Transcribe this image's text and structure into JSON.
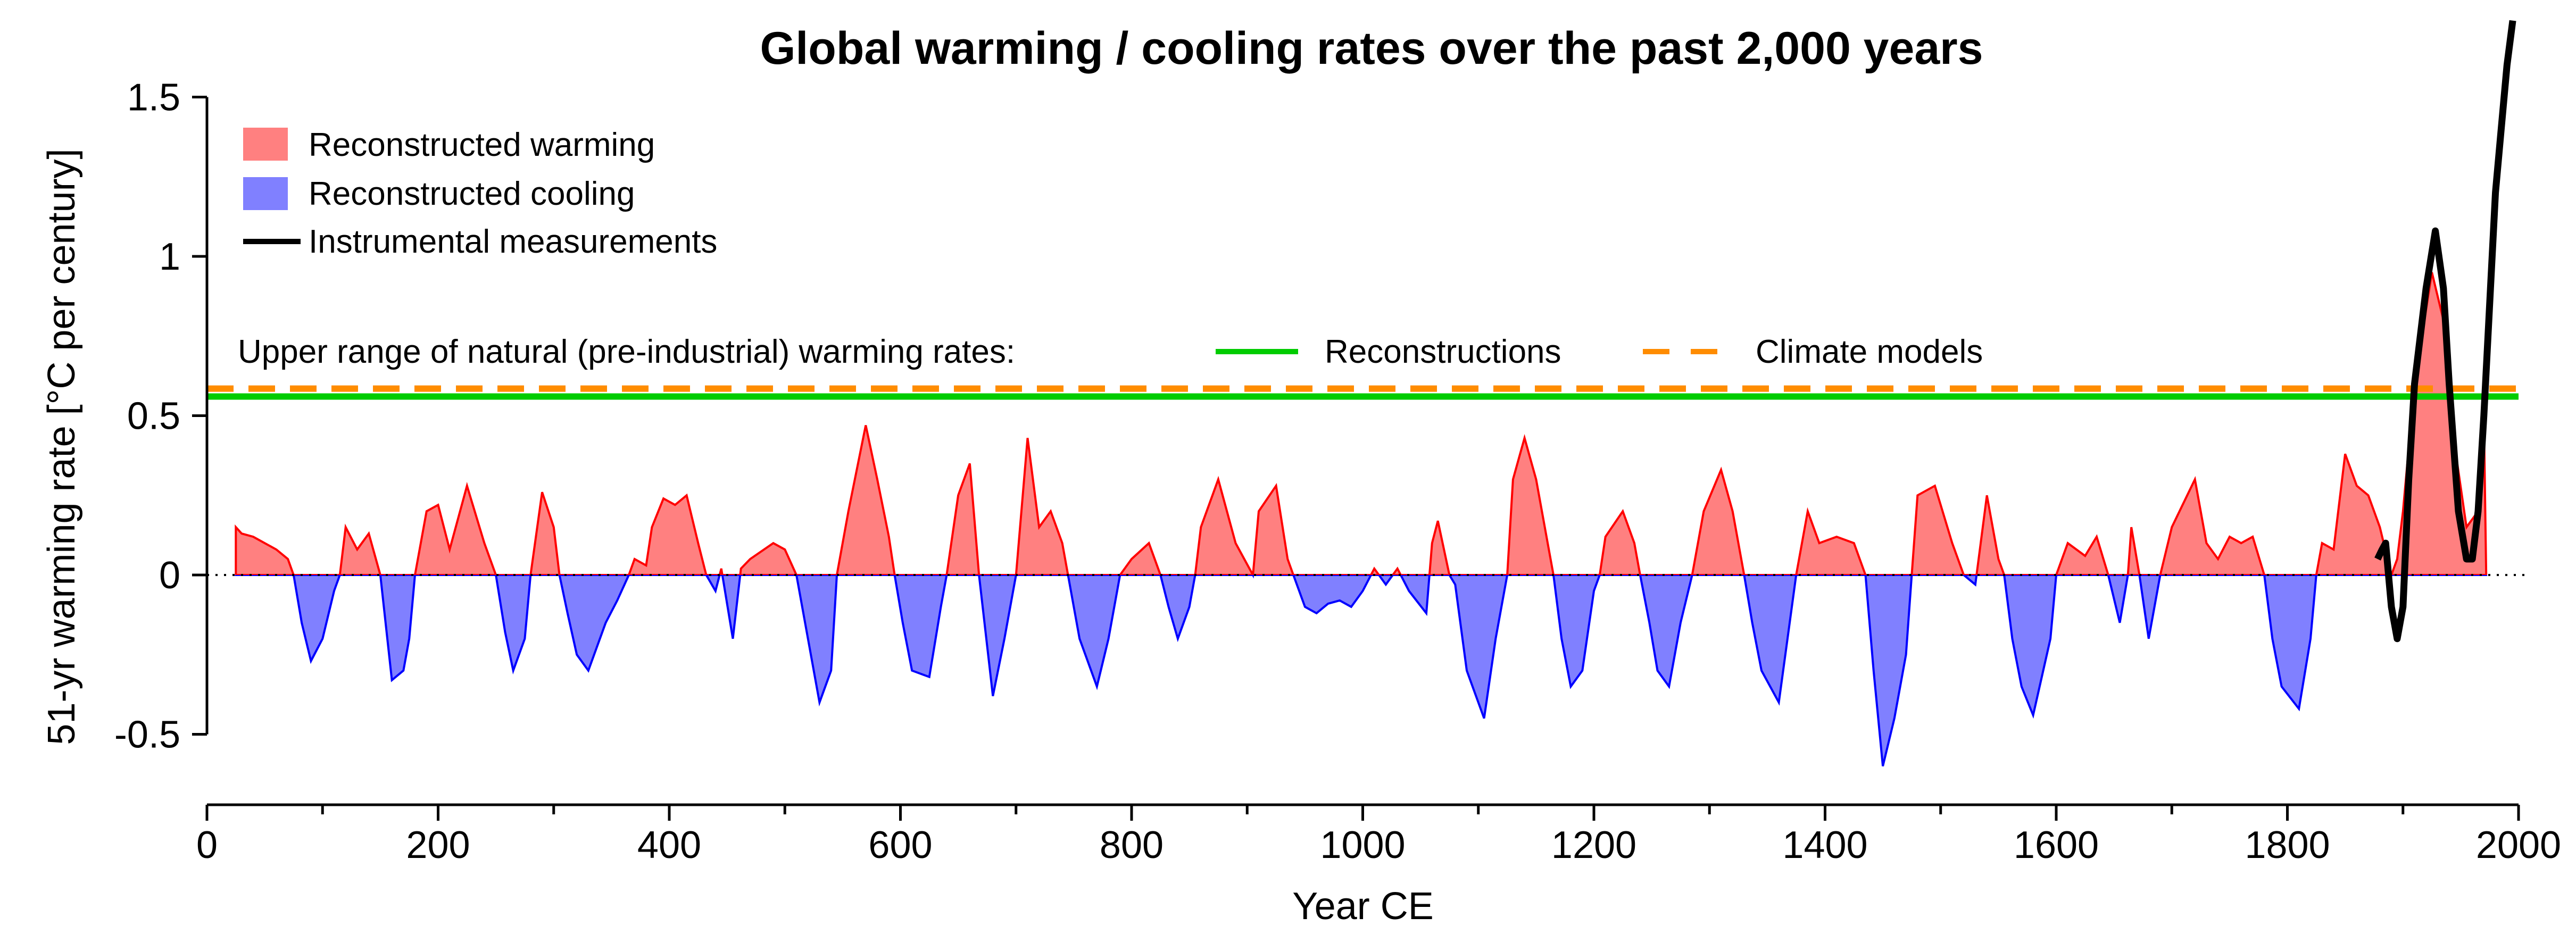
{
  "chart_data": {
    "type": "area",
    "title": "Global warming / cooling rates over the past 2,000 years",
    "xlabel": "Year CE",
    "ylabel": "51-yr warming rate [°C per century]",
    "xlim": [
      0,
      2000
    ],
    "ylim": [
      -0.6,
      1.75
    ],
    "xticks": [
      0,
      200,
      400,
      600,
      800,
      1000,
      1200,
      1400,
      1600,
      1800,
      2000
    ],
    "xtick_labels": [
      "0",
      "200",
      "400",
      "600",
      "800",
      "1000",
      "1200",
      "1400",
      "1600",
      "1800",
      "2000"
    ],
    "xminor_step": 100,
    "yticks": [
      -0.5,
      0,
      0.5,
      1,
      1.5
    ],
    "ytick_labels": [
      "-0.5",
      "0",
      "0.5",
      "1",
      "1.5"
    ],
    "grid": false,
    "legend_placement": "top-left",
    "legend": [
      {
        "label": "Reconstructed warming",
        "type": "fill",
        "color": "#FF8080"
      },
      {
        "label": "Reconstructed cooling",
        "type": "fill",
        "color": "#8080FF"
      },
      {
        "label": "Instrumental measurements",
        "type": "line",
        "color": "#000000"
      }
    ],
    "reference_lines": {
      "label": "Upper range of natural (pre-industrial) warming rates:",
      "items": [
        {
          "label": "Reconstructions",
          "value": 0.56,
          "color": "#00CC00",
          "style": "solid"
        },
        {
          "label": "Climate models",
          "value": 0.585,
          "color": "#FF8C00",
          "style": "dashed"
        }
      ]
    },
    "colors": {
      "warming_line": "#FF0000",
      "cooling_line": "#0000FF",
      "warming_fill": "#FF8080",
      "cooling_fill": "#8080FF"
    },
    "series": [
      {
        "name": "Reconstructed warming / cooling",
        "x": [
          25,
          30,
          40,
          50,
          60,
          70,
          75,
          82,
          90,
          100,
          110,
          115,
          120,
          130,
          140,
          150,
          160,
          170,
          175,
          180,
          190,
          200,
          210,
          225,
          240,
          250,
          258,
          265,
          275,
          280,
          290,
          300,
          305,
          312,
          320,
          330,
          345,
          355,
          365,
          370,
          380,
          385,
          395,
          405,
          415,
          425,
          432,
          440,
          445,
          455,
          462,
          470,
          490,
          500,
          510,
          520,
          530,
          540,
          545,
          555,
          570,
          580,
          590,
          595,
          602,
          610,
          625,
          635,
          640,
          650,
          660,
          668,
          680,
          690,
          700,
          710,
          720,
          730,
          740,
          745,
          755,
          770,
          780,
          790,
          800,
          815,
          825,
          832,
          840,
          850,
          855,
          860,
          875,
          890,
          905,
          910,
          925,
          935,
          940,
          950,
          960,
          970,
          980,
          990,
          1000,
          1010,
          1020,
          1030,
          1040,
          1055,
          1060,
          1065,
          1075,
          1080,
          1090,
          1105,
          1115,
          1125,
          1130,
          1140,
          1150,
          1160,
          1165,
          1172,
          1180,
          1190,
          1200,
          1205,
          1210,
          1225,
          1235,
          1240,
          1248,
          1255,
          1265,
          1275,
          1285,
          1295,
          1310,
          1320,
          1330,
          1337,
          1345,
          1360,
          1375,
          1385,
          1395,
          1410,
          1425,
          1435,
          1442,
          1450,
          1460,
          1470,
          1475,
          1480,
          1495,
          1510,
          1520,
          1530,
          1540,
          1550,
          1555,
          1562,
          1570,
          1580,
          1595,
          1600,
          1610,
          1625,
          1635,
          1645,
          1655,
          1662,
          1665,
          1672,
          1680,
          1690,
          1700,
          1720,
          1730,
          1740,
          1750,
          1760,
          1770,
          1780,
          1787,
          1795,
          1810,
          1820,
          1825,
          1830,
          1840,
          1850,
          1860,
          1870,
          1880,
          1890,
          1895,
          1900,
          1910,
          1925,
          1935,
          1945,
          1955,
          1965,
          1970,
          1972
        ],
        "y": [
          0.15,
          0.13,
          0.12,
          0.1,
          0.08,
          0.05,
          0,
          -0.15,
          -0.27,
          -0.2,
          -0.05,
          0,
          0.15,
          0.08,
          0.13,
          0,
          -0.33,
          -0.3,
          -0.2,
          0,
          0.2,
          0.22,
          0.08,
          0.28,
          0.1,
          0,
          -0.18,
          -0.3,
          -0.2,
          0,
          0.26,
          0.15,
          0,
          -0.12,
          -0.25,
          -0.3,
          -0.15,
          -0.08,
          0,
          0.05,
          0.03,
          0.15,
          0.24,
          0.22,
          0.25,
          0.1,
          0,
          -0.05,
          0.02,
          -0.2,
          0.02,
          0.05,
          0.1,
          0.08,
          0,
          -0.2,
          -0.4,
          -0.3,
          0,
          0.2,
          0.47,
          0.3,
          0.12,
          0,
          -0.15,
          -0.3,
          -0.32,
          -0.1,
          0,
          0.25,
          0.35,
          0,
          -0.38,
          -0.2,
          0,
          0.43,
          0.15,
          0.2,
          0.1,
          0,
          -0.2,
          -0.35,
          -0.2,
          0,
          0.05,
          0.1,
          0,
          -0.1,
          -0.2,
          -0.1,
          0,
          0.15,
          0.3,
          0.1,
          0,
          0.2,
          0.28,
          0.05,
          0,
          -0.1,
          -0.12,
          -0.09,
          -0.08,
          -0.1,
          -0.05,
          0.02,
          -0.03,
          0.02,
          -0.05,
          -0.12,
          0.1,
          0.17,
          0,
          -0.03,
          -0.3,
          -0.45,
          -0.2,
          0,
          0.3,
          0.43,
          0.3,
          0.1,
          0,
          -0.2,
          -0.35,
          -0.3,
          -0.05,
          0,
          0.12,
          0.2,
          0.1,
          0,
          -0.15,
          -0.3,
          -0.35,
          -0.15,
          0,
          0.2,
          0.33,
          0.2,
          0,
          -0.15,
          -0.3,
          -0.4,
          0,
          0.2,
          0.1,
          0.12,
          0.1,
          0,
          -0.3,
          -0.6,
          -0.45,
          -0.25,
          0,
          0.25,
          0.28,
          0.1,
          0,
          -0.03,
          0.25,
          0.05,
          0,
          -0.2,
          -0.35,
          -0.44,
          -0.2,
          0,
          0.1,
          0.06,
          0.12,
          0,
          -0.15,
          0,
          0.15,
          0,
          -0.2,
          0,
          0.15,
          0.3,
          0.1,
          0.05,
          0.12,
          0.1,
          0.12,
          0,
          -0.2,
          -0.35,
          -0.42,
          -0.2,
          0,
          0.1,
          0.08,
          0.38,
          0.28,
          0.25,
          0.15,
          0,
          0.05,
          0.2,
          0.6,
          0.95,
          0.8,
          0.4,
          0.15,
          0.2,
          0.5,
          0
        ]
      },
      {
        "name": "Instrumental measurements",
        "x": [
          1878,
          1882,
          1885,
          1890,
          1895,
          1900,
          1905,
          1910,
          1920,
          1928,
          1935,
          1940,
          1948,
          1955,
          1960,
          1965,
          1970,
          1975,
          1980,
          1985,
          1990,
          1995
        ],
        "y": [
          0.05,
          0.08,
          0.1,
          -0.1,
          -0.2,
          -0.1,
          0.3,
          0.6,
          0.9,
          1.08,
          0.9,
          0.6,
          0.2,
          0.05,
          0.05,
          0.2,
          0.5,
          0.85,
          1.2,
          1.4,
          1.6,
          1.74
        ]
      }
    ]
  }
}
